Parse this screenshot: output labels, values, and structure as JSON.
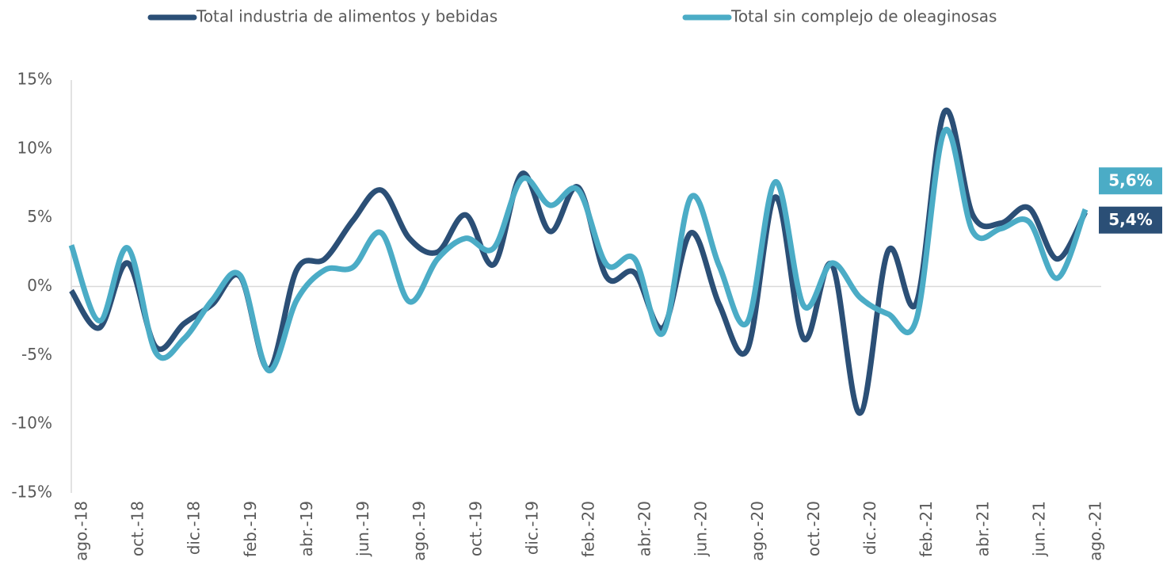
{
  "chart_data": {
    "type": "line",
    "categories": [
      "ago.-18",
      null,
      "oct.-18",
      null,
      "dic.-18",
      null,
      "feb.-19",
      null,
      "abr.-19",
      null,
      "jun.-19",
      null,
      "ago.-19",
      null,
      "oct.-19",
      null,
      "dic.-19",
      null,
      "feb.-20",
      null,
      "abr.-20",
      null,
      "jun.-20",
      null,
      "ago.-20",
      null,
      "oct.-20",
      null,
      "dic.-20",
      null,
      "feb.-21",
      null,
      "abr.-21",
      null,
      "jun.-21",
      null,
      "ago.-21"
    ],
    "series": [
      {
        "name": "Total industria de alimentos y bebidas",
        "color": "#2b4f76",
        "values": [
          -0.3,
          -3.0,
          1.7,
          -4.4,
          -2.7,
          -1.3,
          0.7,
          -6.0,
          1.2,
          2.0,
          4.8,
          7.0,
          3.5,
          2.5,
          5.2,
          1.6,
          8.2,
          4.0,
          7.2,
          0.7,
          1.0,
          -3.0,
          3.9,
          -1.3,
          -4.6,
          6.5,
          -3.8,
          1.6,
          -9.2,
          2.6,
          -1.2,
          12.7,
          5.2,
          4.6,
          5.7,
          2.0,
          5.4
        ],
        "value_labels": [
          null,
          null,
          null,
          null,
          null,
          null,
          null,
          null,
          null,
          null,
          null,
          null,
          null,
          null,
          null,
          null,
          null,
          null,
          null,
          null,
          null,
          null,
          null,
          null,
          null,
          null,
          null,
          null,
          null,
          null,
          null,
          null,
          null,
          null,
          null,
          null,
          "5,4%"
        ]
      },
      {
        "name": "Total sin complejo de oleaginosas",
        "color": "#4bacc6",
        "values": [
          3.0,
          -2.5,
          2.8,
          -4.8,
          -3.8,
          -1.0,
          0.8,
          -6.1,
          -1.0,
          1.2,
          1.4,
          3.9,
          -1.1,
          2.0,
          3.5,
          2.8,
          7.8,
          5.9,
          7.0,
          1.6,
          2.0,
          -3.4,
          6.5,
          1.5,
          -2.6,
          7.6,
          -1.4,
          1.7,
          -0.8,
          -2.0,
          -2.4,
          11.3,
          4.0,
          4.2,
          4.7,
          0.6,
          5.6
        ],
        "value_labels": [
          null,
          null,
          null,
          null,
          null,
          null,
          null,
          null,
          null,
          null,
          null,
          null,
          null,
          null,
          null,
          null,
          null,
          null,
          null,
          null,
          null,
          null,
          null,
          null,
          null,
          null,
          null,
          null,
          null,
          null,
          null,
          null,
          null,
          null,
          null,
          null,
          "5,6%"
        ]
      }
    ],
    "ylim": [
      -15,
      15
    ],
    "yticks": [
      {
        "value": -15,
        "label": "-15%"
      },
      {
        "value": -10,
        "label": "-10%"
      },
      {
        "value": -5,
        "label": "-5%"
      },
      {
        "value": 0,
        "label": "0%"
      },
      {
        "value": 5,
        "label": "5%"
      },
      {
        "value": 10,
        "label": "10%"
      },
      {
        "value": 15,
        "label": "15%"
      }
    ],
    "grid": false,
    "legend": "top"
  }
}
